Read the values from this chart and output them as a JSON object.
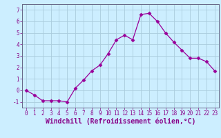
{
  "x": [
    0,
    1,
    2,
    3,
    4,
    5,
    6,
    7,
    8,
    9,
    10,
    11,
    12,
    13,
    14,
    15,
    16,
    17,
    18,
    19,
    20,
    21,
    22,
    23
  ],
  "y": [
    0,
    -0.4,
    -0.9,
    -0.9,
    -0.9,
    -1.0,
    0.2,
    0.9,
    1.7,
    2.2,
    3.2,
    4.4,
    4.8,
    4.4,
    6.6,
    6.7,
    6.0,
    5.0,
    4.2,
    3.5,
    2.8,
    2.8,
    2.5,
    1.7
  ],
  "line_color": "#990099",
  "marker": "D",
  "marker_size": 2.5,
  "bg_color": "#cceeff",
  "grid_color": "#aaccdd",
  "xlabel": "Windchill (Refroidissement éolien,°C)",
  "xlim": [
    -0.5,
    23.5
  ],
  "ylim": [
    -1.5,
    7.5
  ],
  "yticks": [
    -1,
    0,
    1,
    2,
    3,
    4,
    5,
    6,
    7
  ],
  "xticks": [
    0,
    1,
    2,
    3,
    4,
    5,
    6,
    7,
    8,
    9,
    10,
    11,
    12,
    13,
    14,
    15,
    16,
    17,
    18,
    19,
    20,
    21,
    22,
    23
  ],
  "tick_label_color": "#880088",
  "axis_color": "#666688",
  "label_fontsize": 7,
  "tick_fontsize": 5.5
}
